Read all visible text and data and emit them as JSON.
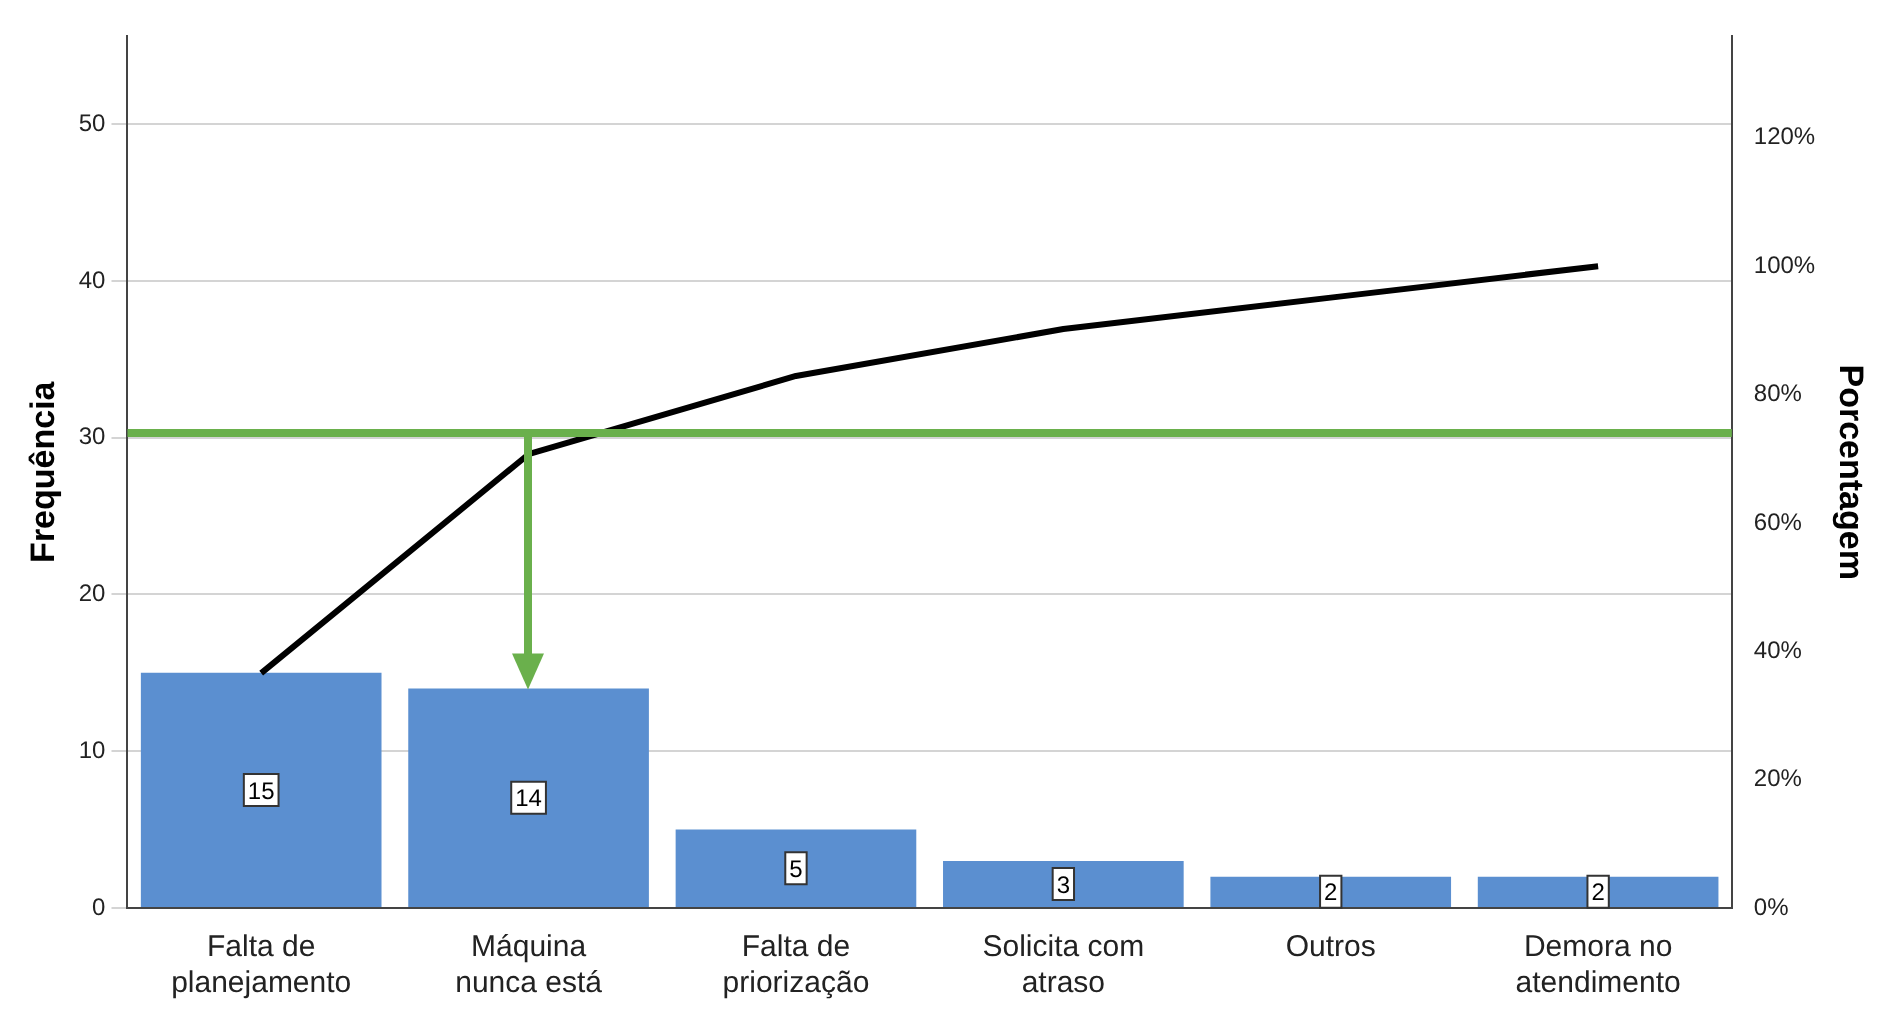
{
  "chart_data": {
    "type": "bar",
    "xlabel": null,
    "ylabel": "Frequência",
    "y2label": "Porcentagem",
    "categories": [
      "Falta de planejamento",
      "Máquina nunca está",
      "Falta de priorização",
      "Solicita com atraso",
      "Outros",
      "Demora no atendimento"
    ],
    "series": [
      {
        "color": "#5b8fd0",
        "values": [
          15,
          14,
          5,
          3,
          2,
          2
        ],
        "value_labels": [
          "15",
          "14",
          "5",
          "3",
          "2",
          "2"
        ]
      },
      {
        "type": "line",
        "axis": "y2",
        "color": "#000000",
        "values": [
          36.6,
          70.7,
          82.9,
          90.2,
          95.1,
          100
        ]
      }
    ],
    "ylim": [
      0,
      55.6
    ],
    "yticks": [
      0,
      10,
      20,
      30,
      40,
      50
    ],
    "y2lim": [
      0,
      135.8
    ],
    "y2ticks": [
      {
        "value": 0,
        "label": "0%"
      },
      {
        "value": 20,
        "label": "20%"
      },
      {
        "value": 40,
        "label": "40%"
      },
      {
        "value": 60,
        "label": "60%"
      },
      {
        "value": 80,
        "label": "80%"
      },
      {
        "value": 100,
        "label": "100%"
      },
      {
        "value": 120,
        "label": "120%"
      }
    ],
    "ref_lines": [
      {
        "axis": "y2",
        "value": 74,
        "color": "#6ab04c"
      }
    ],
    "grid": "y",
    "legend": false
  }
}
